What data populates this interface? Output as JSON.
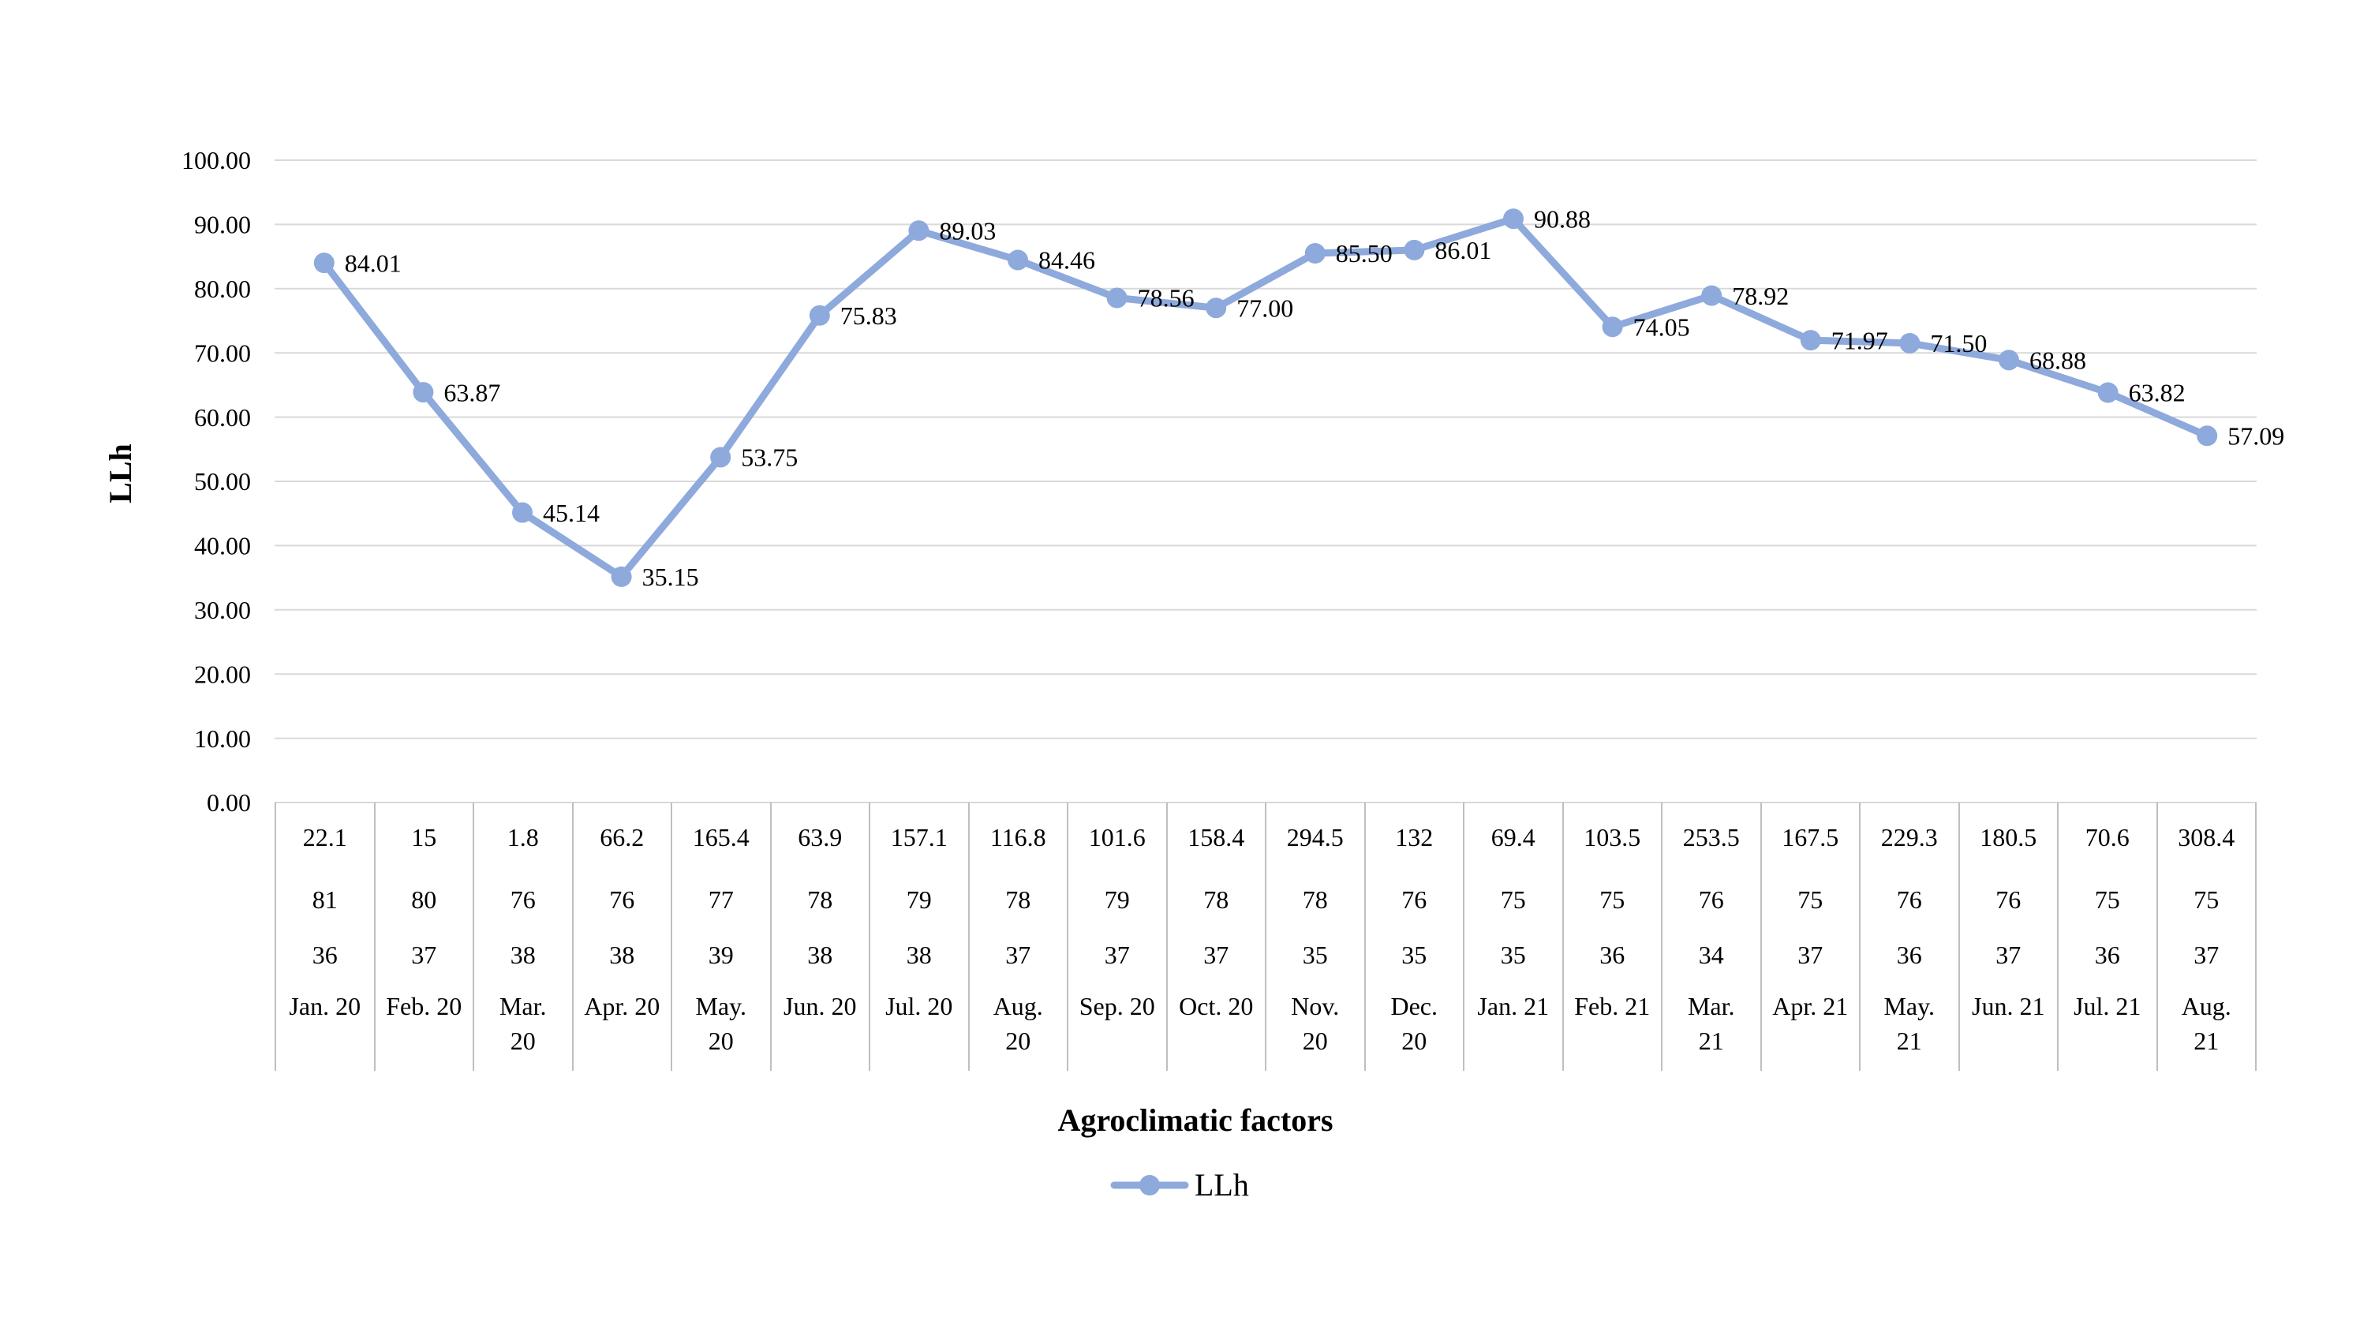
{
  "chart_data": {
    "type": "line",
    "title": "",
    "ylabel": "LLh",
    "xlabel": "Agroclimatic factors",
    "legend_label": "LLh",
    "legend_position": "bottom",
    "grid": true,
    "ylim": [
      0,
      100
    ],
    "ytick_step": 10,
    "ytick_decimals": 2,
    "data_label_decimals": 2,
    "colors": {
      "line": "#8EA9DB",
      "marker": "#8EA9DB",
      "gridline": "#D9D9D9",
      "table_border": "#BFBFBF",
      "text": "#000000"
    },
    "categories": [
      "Jan. 20",
      "Feb. 20",
      "Mar.\n20",
      "Apr. 20",
      "May.\n20",
      "Jun. 20",
      "Jul. 20",
      "Aug.\n20",
      "Sep. 20",
      "Oct. 20",
      "Nov.\n20",
      "Dec.\n20",
      "Jan. 21",
      "Feb. 21",
      "Mar.\n21",
      "Apr. 21",
      "May.\n21",
      "Jun. 21",
      "Jul. 21",
      "Aug.\n21"
    ],
    "series": [
      {
        "name": "LLh",
        "values": [
          84.01,
          63.87,
          45.14,
          35.15,
          53.75,
          75.83,
          89.03,
          84.46,
          78.56,
          77.0,
          85.5,
          86.01,
          90.88,
          74.05,
          78.92,
          71.97,
          71.5,
          68.88,
          63.82,
          57.09
        ]
      }
    ],
    "axis_table_rows": [
      [
        "22.1",
        "15",
        "1.8",
        "66.2",
        "165.4",
        "63.9",
        "157.1",
        "116.8",
        "101.6",
        "158.4",
        "294.5",
        "132",
        "69.4",
        "103.5",
        "253.5",
        "167.5",
        "229.3",
        "180.5",
        "70.6",
        "308.4"
      ],
      [
        "81",
        "80",
        "76",
        "76",
        "77",
        "78",
        "79",
        "78",
        "79",
        "78",
        "78",
        "76",
        "75",
        "75",
        "76",
        "75",
        "76",
        "76",
        "75",
        "75"
      ],
      [
        "36",
        "37",
        "38",
        "38",
        "39",
        "38",
        "38",
        "37",
        "37",
        "37",
        "35",
        "35",
        "35",
        "36",
        "34",
        "37",
        "36",
        "37",
        "36",
        "37"
      ]
    ]
  }
}
